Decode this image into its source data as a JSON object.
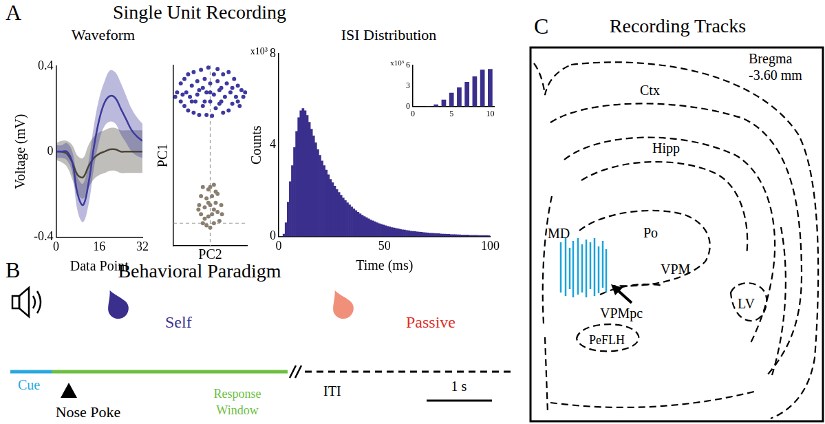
{
  "panels": [
    {
      "letter": "A",
      "title": "Single Unit Recording"
    },
    {
      "letter": "B",
      "title": "Behavioral Paradigm"
    },
    {
      "letter": "C",
      "title": "Recording Tracks"
    }
  ],
  "chart_data": [
    {
      "type": "line",
      "title": "Waveform",
      "x_label": "Data Point",
      "y_label": "Voltage (mV)",
      "x": [
        0,
        2,
        4,
        6,
        8,
        10,
        12,
        14,
        16,
        18,
        20,
        22,
        24,
        26,
        28,
        30,
        32
      ],
      "xlim": [
        0,
        32
      ],
      "xticks": [
        0,
        16,
        32
      ],
      "ylim": [
        -0.4,
        0.4
      ],
      "yticks": [
        -0.4,
        0,
        0.4
      ],
      "grid": false,
      "series": [
        {
          "color": "#3c3a9c",
          "values": [
            0,
            0,
            0,
            -0.05,
            -0.2,
            -0.25,
            -0.15,
            0.02,
            0.15,
            0.23,
            0.26,
            0.25,
            0.2,
            0.15,
            0.1,
            0.07,
            0.05
          ],
          "lower": [
            -0.03,
            -0.03,
            -0.04,
            -0.1,
            -0.28,
            -0.33,
            -0.25,
            -0.08,
            0.05,
            0.12,
            0.14,
            0.13,
            0.08,
            0.04,
            0,
            -0.02,
            -0.03
          ],
          "upper": [
            0.03,
            0.03,
            0.04,
            0,
            -0.12,
            -0.15,
            -0.05,
            0.12,
            0.25,
            0.33,
            0.38,
            0.37,
            0.32,
            0.26,
            0.2,
            0.16,
            0.13
          ]
        },
        {
          "color": "#4a4538",
          "values": [
            0,
            0,
            -0.01,
            -0.05,
            -0.11,
            -0.12,
            -0.07,
            -0.03,
            -0.01,
            0,
            0.01,
            0.01,
            0,
            0,
            0,
            0,
            0
          ],
          "lower": [
            -0.04,
            -0.05,
            -0.07,
            -0.13,
            -0.2,
            -0.22,
            -0.17,
            -0.13,
            -0.11,
            -0.1,
            -0.09,
            -0.09,
            -0.1,
            -0.1,
            -0.1,
            -0.1,
            -0.1
          ],
          "upper": [
            0.04,
            0.05,
            0.05,
            0.03,
            -0.02,
            -0.03,
            0.03,
            0.07,
            0.09,
            0.1,
            0.11,
            0.11,
            0.1,
            0.1,
            0.1,
            0.1,
            0.1
          ]
        }
      ]
    },
    {
      "type": "scatter",
      "x_label": "PC2",
      "y_label": "PC1",
      "xlim": [
        -1,
        1
      ],
      "xticks": [
        0
      ],
      "ylim": [
        -0.5,
        3.5
      ],
      "yticks": [
        0
      ],
      "grid": true,
      "tick_labels": false,
      "series": [
        {
          "color": "#3d3aa0",
          "points": [
            [
              -0.9,
              2.9
            ],
            [
              -0.8,
              2.7
            ],
            [
              -0.8,
              3.1
            ],
            [
              -0.7,
              2.6
            ],
            [
              -0.7,
              3.2
            ],
            [
              -0.65,
              2.9
            ],
            [
              -0.6,
              2.5
            ],
            [
              -0.6,
              3.3
            ],
            [
              -0.55,
              2.8
            ],
            [
              -0.5,
              3.05
            ],
            [
              -0.45,
              2.45
            ],
            [
              -0.45,
              3.35
            ],
            [
              -0.4,
              2.7
            ],
            [
              -0.35,
              3.15
            ],
            [
              -0.3,
              2.4
            ],
            [
              -0.3,
              2.95
            ],
            [
              -0.25,
              3.4
            ],
            [
              -0.2,
              2.6
            ],
            [
              -0.15,
              3.2
            ],
            [
              -0.1,
              2.4
            ],
            [
              -0.1,
              2.9
            ],
            [
              -0.05,
              3.45
            ],
            [
              0,
              2.7
            ],
            [
              0,
              3.1
            ],
            [
              0.05,
              2.38
            ],
            [
              0.1,
              3.3
            ],
            [
              0.1,
              2.85
            ],
            [
              0.15,
              2.55
            ],
            [
              0.2,
              3.15
            ],
            [
              0.2,
              3.42
            ],
            [
              0.25,
              2.65
            ],
            [
              0.3,
              3.0
            ],
            [
              0.35,
              2.45
            ],
            [
              0.35,
              3.3
            ],
            [
              0.4,
              2.8
            ],
            [
              0.45,
              3.1
            ],
            [
              0.5,
              2.5
            ],
            [
              0.5,
              3.35
            ],
            [
              0.55,
              2.9
            ],
            [
              0.6,
              2.65
            ],
            [
              0.65,
              3.2
            ],
            [
              0.7,
              2.8
            ],
            [
              0.75,
              3.05
            ],
            [
              0.8,
              2.6
            ],
            [
              0.85,
              2.95
            ],
            [
              0.9,
              2.8
            ],
            [
              -0.95,
              2.8
            ],
            [
              0.95,
              2.9
            ],
            [
              -0.2,
              3.0
            ],
            [
              0.3,
              2.7
            ],
            [
              -0.5,
              2.7
            ],
            [
              0.6,
              3.0
            ],
            [
              -0.75,
              2.85
            ],
            [
              0.75,
              2.7
            ],
            [
              0,
              2.9
            ],
            [
              -0.35,
              2.85
            ],
            [
              0.25,
              2.95
            ],
            [
              -0.15,
              2.7
            ]
          ]
        },
        {
          "color": "#8a8070",
          "points": [
            [
              -0.3,
              0.4
            ],
            [
              -0.25,
              0.2
            ],
            [
              -0.25,
              0.6
            ],
            [
              -0.2,
              0.0
            ],
            [
              -0.2,
              0.8
            ],
            [
              -0.15,
              0.35
            ],
            [
              -0.1,
              -0.05
            ],
            [
              -0.1,
              0.55
            ],
            [
              -0.05,
              0.15
            ],
            [
              -0.05,
              0.75
            ],
            [
              0,
              0.4
            ],
            [
              0,
              -0.1
            ],
            [
              0.05,
              0.6
            ],
            [
              0.05,
              0.2
            ],
            [
              0.1,
              0.85
            ],
            [
              0.1,
              0.0
            ],
            [
              0.15,
              0.45
            ],
            [
              0.2,
              0.25
            ],
            [
              0.2,
              0.65
            ],
            [
              0.25,
              0.05
            ],
            [
              0.3,
              0.4
            ],
            [
              0.32,
              0.2
            ],
            [
              -0.32,
              0.3
            ],
            [
              0,
              0.8
            ],
            [
              -0.15,
              0.1
            ],
            [
              0.15,
              0.7
            ],
            [
              -0.05,
              0.45
            ],
            [
              0.1,
              0.3
            ]
          ]
        }
      ]
    },
    {
      "type": "histogram",
      "title": "ISI Distribution",
      "x_label": "Time (ms)",
      "y_label": "Counts",
      "y_multiplier": "x10³",
      "color": "#3a2f8c",
      "bins": [
        0,
        1,
        2,
        3,
        4,
        5,
        6,
        7,
        8,
        9,
        10,
        11,
        12,
        13,
        14,
        15,
        16,
        17,
        18,
        19,
        20,
        21,
        22,
        23,
        24,
        25,
        26,
        27,
        28,
        29,
        30,
        31,
        32,
        33,
        34,
        35,
        36,
        37,
        38,
        39,
        40,
        41,
        42,
        43,
        44,
        45,
        46,
        47,
        48,
        49,
        50,
        51,
        52,
        53,
        54,
        55,
        56,
        57,
        58,
        59,
        60,
        61,
        62,
        63,
        64,
        65,
        66,
        67,
        68,
        69,
        70,
        71,
        72,
        73,
        74,
        75,
        76,
        77,
        78,
        79,
        80,
        81,
        82,
        83,
        84,
        85,
        86,
        87,
        88,
        89,
        90,
        91,
        92,
        93,
        94,
        95,
        96,
        97,
        98,
        99,
        100
      ],
      "counts": [
        0,
        0,
        0.1,
        0.6,
        1.5,
        2.4,
        3.1,
        3.9,
        4.6,
        5.2,
        5.5,
        5.6,
        5.5,
        5.3,
        5.0,
        4.7,
        4.4,
        4.1,
        3.8,
        3.55,
        3.3,
        3.1,
        2.9,
        2.7,
        2.5,
        2.35,
        2.2,
        2.05,
        1.92,
        1.8,
        1.68,
        1.57,
        1.47,
        1.38,
        1.29,
        1.21,
        1.13,
        1.06,
        0.99,
        0.93,
        0.87,
        0.82,
        0.77,
        0.72,
        0.68,
        0.64,
        0.6,
        0.56,
        0.53,
        0.5,
        0.47,
        0.44,
        0.42,
        0.39,
        0.37,
        0.35,
        0.33,
        0.31,
        0.29,
        0.28,
        0.26,
        0.25,
        0.23,
        0.22,
        0.21,
        0.2,
        0.19,
        0.18,
        0.17,
        0.16,
        0.15,
        0.14,
        0.14,
        0.13,
        0.12,
        0.12,
        0.11,
        0.1,
        0.1,
        0.09,
        0.09,
        0.08,
        0.08,
        0.08,
        0.07,
        0.07,
        0.06,
        0.06,
        0.06,
        0.06,
        0.05,
        0.05,
        0.05,
        0.05,
        0.04,
        0.04,
        0.04,
        0.04,
        0.04,
        0.03
      ],
      "xlim": [
        0,
        100
      ],
      "xticks": [
        0,
        50,
        100
      ],
      "ylim": [
        0,
        8
      ],
      "yticks": [
        0,
        4,
        8
      ],
      "grid": false
    },
    {
      "type": "bar",
      "y_multiplier": "x10³",
      "color": "#3a2f8c",
      "x": [
        1,
        2,
        3,
        4,
        5,
        6,
        7,
        8,
        9,
        10
      ],
      "values": [
        0,
        0.05,
        0.3,
        1.0,
        2.0,
        2.8,
        3.6,
        4.4,
        5.4,
        5.5
      ],
      "xlim": [
        0,
        10.5
      ],
      "xticks": [
        0,
        5,
        10
      ],
      "ylim": [
        0,
        6
      ],
      "yticks": [
        0,
        3,
        6
      ],
      "grid": false
    }
  ],
  "paradigm": {
    "cue": "Cue",
    "self": "Self",
    "nose_poke": "Nose Poke",
    "response_window": "Response Window",
    "iti": "ITI",
    "passive": "Passive",
    "scale_bar": "1 s"
  },
  "tracks": {
    "bregma": [
      "Bregma",
      "-3.60 mm"
    ],
    "regions": [
      "Ctx",
      "Hipp",
      "Po",
      "MD",
      "VPM",
      "VPMpc",
      "LV",
      "PeFLH"
    ]
  }
}
